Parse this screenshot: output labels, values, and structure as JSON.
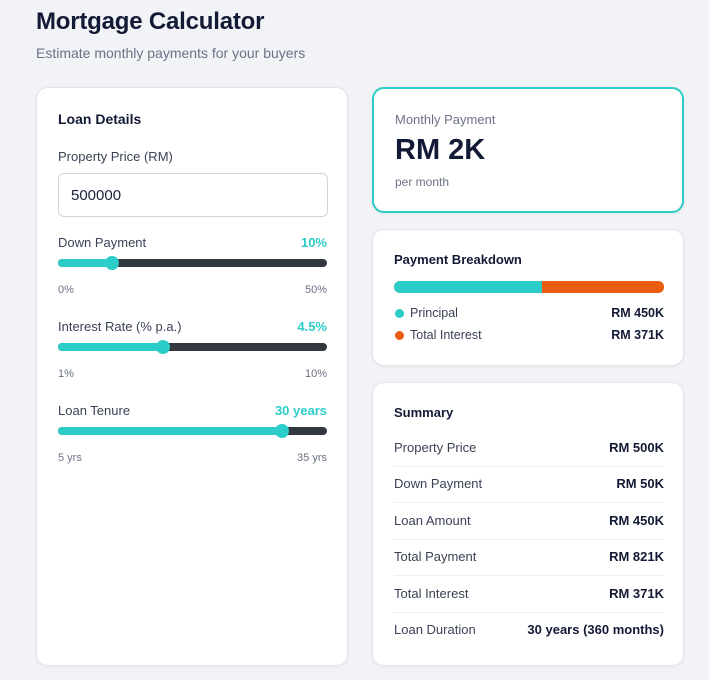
{
  "header": {
    "title": "Mortgage Calculator",
    "subtitle": "Estimate monthly payments for your buyers"
  },
  "loan_details": {
    "heading": "Loan Details",
    "property_price": {
      "label": "Property Price (RM)",
      "value": "500000"
    },
    "down_payment": {
      "label": "Down Payment",
      "value_text": "10%",
      "value": 10,
      "min": 0,
      "max": 50,
      "min_label": "0%",
      "max_label": "50%"
    },
    "interest_rate": {
      "label": "Interest Rate (% p.a.)",
      "value_text": "4.5%",
      "value": 4.5,
      "min": 1,
      "max": 10,
      "min_label": "1%",
      "max_label": "10%"
    },
    "loan_tenure": {
      "label": "Loan Tenure",
      "value_text": "30 years",
      "value": 30,
      "min": 5,
      "max": 35,
      "min_label": "5 yrs",
      "max_label": "35 yrs"
    }
  },
  "monthly_payment": {
    "label": "Monthly Payment",
    "value": "RM 2K",
    "unit": "per month"
  },
  "breakdown": {
    "heading": "Payment Breakdown",
    "principal_share": 0.548,
    "items": [
      {
        "label": "Principal",
        "value": "RM 450K",
        "color": "#2ccdc8"
      },
      {
        "label": "Total Interest",
        "value": "RM 371K",
        "color": "#e85d0f"
      }
    ]
  },
  "summary": {
    "heading": "Summary",
    "rows": [
      {
        "label": "Property Price",
        "value": "RM 500K"
      },
      {
        "label": "Down Payment",
        "value": "RM 50K"
      },
      {
        "label": "Loan Amount",
        "value": "RM 450K"
      },
      {
        "label": "Total Payment",
        "value": "RM 821K"
      },
      {
        "label": "Total Interest",
        "value": "RM 371K"
      },
      {
        "label": "Loan Duration",
        "value": "30 years (360 months)"
      }
    ]
  },
  "colors": {
    "accent": "#2ccdc8",
    "interest": "#e85d0f",
    "track": "#333840"
  }
}
